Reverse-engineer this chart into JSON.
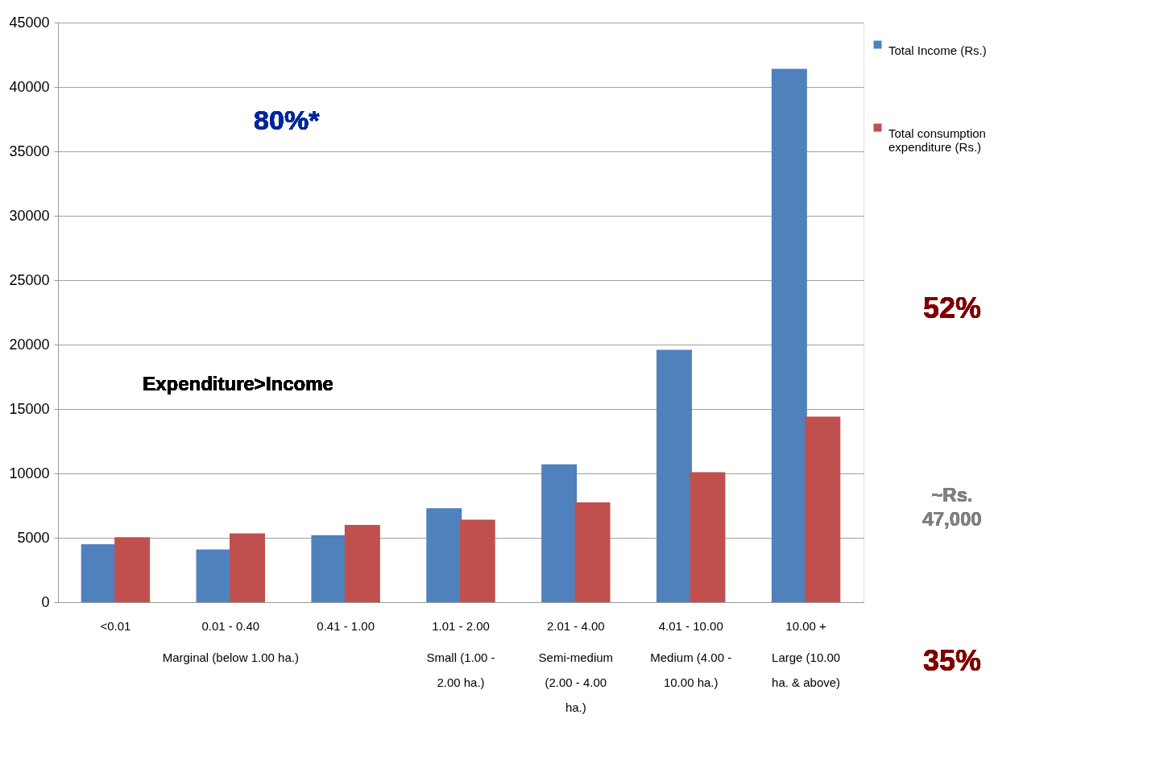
{
  "chart_data": {
    "type": "bar",
    "categories": [
      "<0.01",
      "0.01 - 0.40",
      "0.41 - 1.00",
      "1.01 - 2.00",
      "2.01 - 4.00",
      "4.01 - 10.00",
      "10.00 +"
    ],
    "series": [
      {
        "name": "Total Income (Rs.)",
        "color": "#4f81bd",
        "values": [
          4500,
          4100,
          5200,
          7300,
          10700,
          19600,
          41400
        ]
      },
      {
        "name": "Total consumption expenditure (Rs.)",
        "color": "#c0504d",
        "values": [
          5050,
          5350,
          6000,
          6400,
          7750,
          10100,
          14400
        ]
      }
    ],
    "ylim": [
      0,
      45000
    ],
    "yticks": [
      0,
      5000,
      10000,
      15000,
      20000,
      25000,
      30000,
      35000,
      40000,
      45000
    ],
    "grid": "y",
    "legend": "top right",
    "annotations": [
      "Marginal (below 1.00 ha.)",
      "Small (1.00 - 2.00 ha.)",
      "Semi-medium (2.00 - 4.00 ha.)",
      "Medium (4.00 - 10.00 ha.)",
      "Large (10.00 ha. & above)",
      "80%*",
      "Expenditure>Income",
      "52%",
      "~Rs. 47,000",
      "35%"
    ]
  }
}
